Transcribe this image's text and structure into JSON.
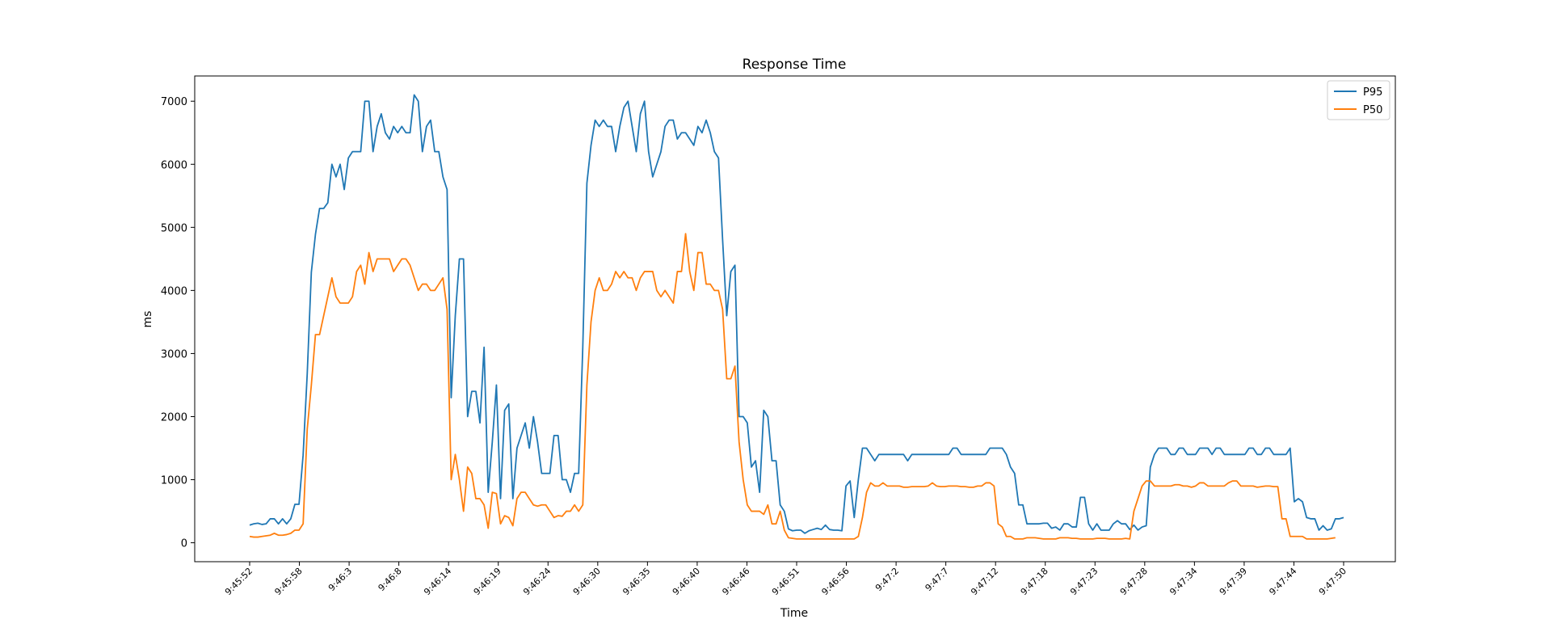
{
  "chart_data": {
    "type": "line",
    "title": "Response Time",
    "xlabel": "Time",
    "ylabel": "ms",
    "ylim": [
      -300,
      7400
    ],
    "yticks": [
      0,
      1000,
      2000,
      3000,
      4000,
      5000,
      6000,
      7000
    ],
    "xtick_labels": [
      "9:45:52",
      "9:45:58",
      "9:46:3",
      "9:46:8",
      "9:46:14",
      "9:46:19",
      "9:46:24",
      "9:46:30",
      "9:46:35",
      "9:46:40",
      "9:46:46",
      "9:46:51",
      "9:46:56",
      "9:47:2",
      "9:47:7",
      "9:47:12",
      "9:47:18",
      "9:47:23",
      "9:47:28",
      "9:47:34",
      "9:47:39",
      "9:47:44",
      "9:47:50"
    ],
    "grid": false,
    "legend": "top-right",
    "series": [
      {
        "name": "P95",
        "color": "#1f77b4",
        "values": [
          280,
          300,
          310,
          290,
          300,
          380,
          380,
          300,
          380,
          300,
          380,
          610,
          610,
          1390,
          2680,
          4290,
          4890,
          5300,
          5300,
          5390,
          6000,
          5800,
          6000,
          5600,
          6100,
          6200,
          6200,
          6200,
          7000,
          7000,
          6200,
          6600,
          6800,
          6500,
          6400,
          6600,
          6500,
          6600,
          6500,
          6500,
          7100,
          7000,
          6200,
          6600,
          6700,
          6200,
          6200,
          5800,
          5600,
          2300,
          3600,
          4500,
          4500,
          2000,
          2400,
          2400,
          1900,
          3100,
          800,
          1600,
          2500,
          700,
          2100,
          2200,
          700,
          1500,
          1700,
          1900,
          1500,
          2000,
          1600,
          1100,
          1100,
          1100,
          1700,
          1700,
          1000,
          1000,
          800,
          1100,
          1100,
          3100,
          5700,
          6300,
          6700,
          6600,
          6700,
          6600,
          6600,
          6200,
          6600,
          6900,
          7000,
          6600,
          6200,
          6800,
          7000,
          6200,
          5800,
          6000,
          6200,
          6600,
          6700,
          6700,
          6400,
          6500,
          6500,
          6400,
          6300,
          6600,
          6500,
          6700,
          6500,
          6200,
          6100,
          4800,
          3600,
          4300,
          4400,
          2000,
          2000,
          1900,
          1200,
          1300,
          800,
          2100,
          2000,
          1300,
          1300,
          600,
          500,
          220,
          190,
          200,
          200,
          150,
          190,
          210,
          230,
          210,
          280,
          210,
          200,
          200,
          190,
          900,
          980,
          400,
          1000,
          1500,
          1500,
          1400,
          1300,
          1400,
          1400,
          1400,
          1400,
          1400,
          1400,
          1400,
          1300,
          1400,
          1400,
          1400,
          1400,
          1400,
          1400,
          1400,
          1400,
          1400,
          1400,
          1500,
          1500,
          1400,
          1400,
          1400,
          1400,
          1400,
          1400,
          1400,
          1500,
          1500,
          1500,
          1500,
          1400,
          1200,
          1100,
          600,
          600,
          300,
          300,
          300,
          300,
          310,
          310,
          230,
          250,
          200,
          300,
          300,
          250,
          250,
          720,
          720,
          300,
          200,
          300,
          200,
          200,
          200,
          300,
          350,
          300,
          300,
          210,
          280,
          200,
          250,
          270,
          1200,
          1400,
          1500,
          1500,
          1500,
          1400,
          1400,
          1500,
          1500,
          1400,
          1400,
          1400,
          1500,
          1500,
          1500,
          1400,
          1500,
          1500,
          1400,
          1400,
          1400,
          1400,
          1400,
          1400,
          1500,
          1500,
          1400,
          1400,
          1500,
          1500,
          1400,
          1400,
          1400,
          1400,
          1500,
          650,
          700,
          650,
          400,
          380,
          380,
          200,
          270,
          200,
          220,
          380,
          380,
          400
        ]
      },
      {
        "name": "P50",
        "color": "#ff7f0e",
        "values": [
          100,
          90,
          90,
          100,
          110,
          120,
          150,
          120,
          120,
          130,
          150,
          200,
          200,
          300,
          1800,
          2500,
          3300,
          3300,
          3600,
          3900,
          4200,
          3900,
          3800,
          3800,
          3800,
          3900,
          4300,
          4400,
          4100,
          4600,
          4300,
          4500,
          4500,
          4500,
          4500,
          4300,
          4400,
          4500,
          4500,
          4400,
          4200,
          4000,
          4100,
          4100,
          4000,
          4000,
          4100,
          4200,
          3700,
          1000,
          1400,
          1000,
          500,
          1200,
          1100,
          700,
          700,
          600,
          230,
          800,
          780,
          300,
          430,
          400,
          270,
          700,
          800,
          800,
          700,
          600,
          580,
          600,
          600,
          500,
          400,
          430,
          420,
          500,
          500,
          600,
          500,
          600,
          2500,
          3500,
          4000,
          4200,
          4000,
          4000,
          4100,
          4300,
          4200,
          4300,
          4200,
          4200,
          4000,
          4200,
          4300,
          4300,
          4300,
          4000,
          3900,
          4000,
          3900,
          3800,
          4300,
          4300,
          4900,
          4300,
          4000,
          4600,
          4600,
          4100,
          4100,
          4000,
          4000,
          3700,
          2600,
          2600,
          2800,
          1600,
          1000,
          600,
          500,
          500,
          500,
          450,
          600,
          300,
          300,
          500,
          200,
          80,
          70,
          60,
          60,
          60,
          60,
          60,
          60,
          60,
          60,
          60,
          60,
          60,
          60,
          60,
          60,
          60,
          100,
          400,
          800,
          950,
          900,
          900,
          950,
          900,
          900,
          900,
          900,
          880,
          880,
          890,
          890,
          890,
          890,
          900,
          950,
          900,
          890,
          890,
          900,
          900,
          900,
          890,
          890,
          880,
          880,
          900,
          900,
          950,
          950,
          900,
          300,
          250,
          100,
          100,
          60,
          60,
          60,
          80,
          80,
          80,
          70,
          60,
          60,
          60,
          60,
          80,
          80,
          80,
          70,
          70,
          60,
          60,
          60,
          60,
          70,
          70,
          70,
          60,
          60,
          60,
          60,
          70,
          60,
          500,
          700,
          900,
          980,
          980,
          900,
          900,
          900,
          900,
          900,
          920,
          920,
          900,
          900,
          880,
          900,
          950,
          950,
          900,
          900,
          900,
          900,
          900,
          950,
          980,
          980,
          900,
          900,
          900,
          900,
          880,
          890,
          900,
          900,
          890,
          890,
          380,
          380,
          100,
          100,
          100,
          100,
          60,
          60,
          60,
          60,
          60,
          60,
          70,
          80
        ]
      }
    ]
  }
}
